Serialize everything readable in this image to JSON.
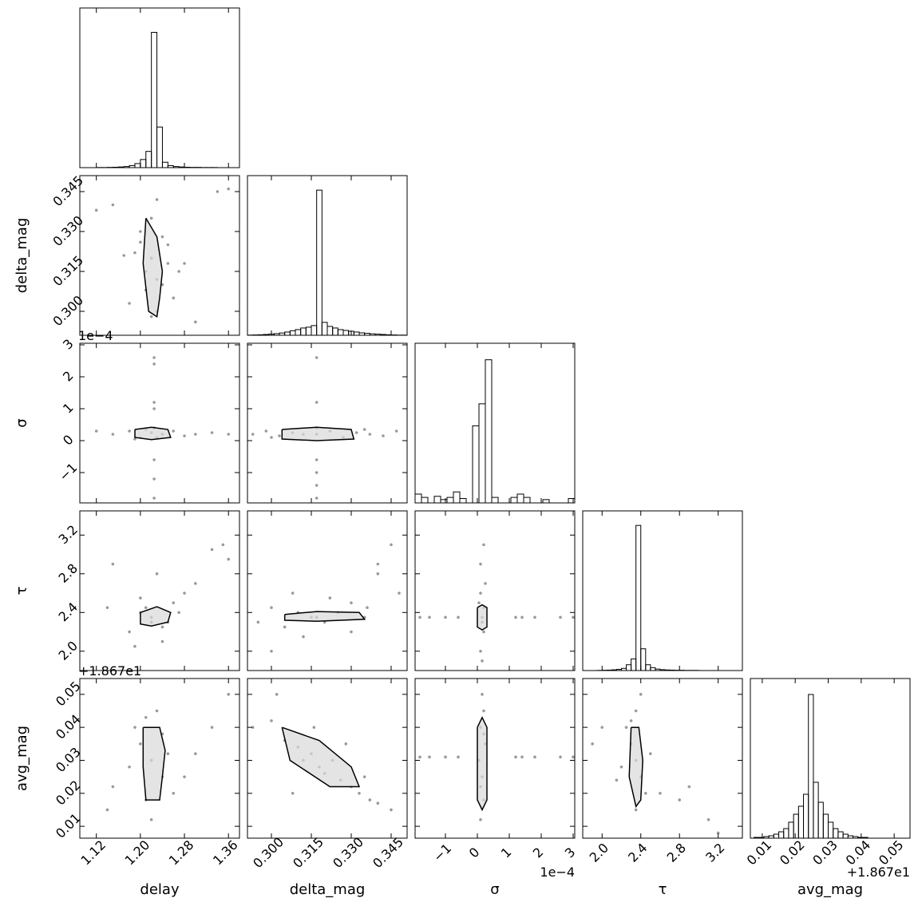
{
  "chart_data": {
    "type": "corner",
    "variables": [
      {
        "label": "delay",
        "lim": [
          1.09,
          1.38
        ],
        "ticks": [
          1.12,
          {
            "value": 1.2,
            "label": "1.20"
          },
          1.28,
          1.36
        ]
      },
      {
        "label": "delta_mag",
        "lim": [
          0.291,
          0.351
        ],
        "ticks": [
          {
            "value": 0.3,
            "label": "0.300"
          },
          0.315,
          {
            "value": 0.33,
            "label": "0.330"
          },
          0.345
        ]
      },
      {
        "label": "σ",
        "lim": [
          -1.95,
          3.05
        ],
        "ticks": [
          {
            "value": -1,
            "label": "−1"
          },
          0,
          1,
          2,
          3
        ],
        "offset": "1e−4"
      },
      {
        "label": "τ",
        "lim": [
          1.8,
          3.45
        ],
        "ticks": [
          {
            "value": 2,
            "label": "2.0"
          },
          2.4,
          2.8,
          3.2
        ]
      },
      {
        "label": "avg_mag",
        "lim": [
          0.0064,
          0.0548
        ],
        "ticks": [
          0.01,
          0.02,
          0.03,
          0.04,
          0.05
        ],
        "offset": "+1.867e1"
      }
    ],
    "histograms": [
      {
        "bins": [
          1.09,
          1.1,
          1.11,
          1.12,
          1.13,
          1.14,
          1.15,
          1.16,
          1.17,
          1.18,
          1.19,
          1.2,
          1.21,
          1.22,
          1.23,
          1.24,
          1.25,
          1.26,
          1.27,
          1.28,
          1.29,
          1.3,
          1.31,
          1.32,
          1.33,
          1.34,
          1.35,
          1.36,
          1.37,
          1.38,
          1.39
        ],
        "counts": [
          0,
          0,
          0,
          1,
          1,
          2,
          3,
          5,
          8,
          15,
          30,
          60,
          120,
          1000,
          300,
          40,
          15,
          8,
          5,
          3,
          2,
          2,
          1,
          1,
          1,
          0,
          0,
          0,
          0,
          0
        ],
        "ylim": [
          0,
          1180
        ]
      },
      {
        "bins": [
          0.291,
          0.293,
          0.295,
          0.297,
          0.299,
          0.301,
          0.303,
          0.305,
          0.307,
          0.309,
          0.311,
          0.313,
          0.315,
          0.317,
          0.319,
          0.321,
          0.323,
          0.325,
          0.327,
          0.329,
          0.331,
          0.333,
          0.335,
          0.337,
          0.339,
          0.341,
          0.343,
          0.345,
          0.347,
          0.349,
          0.351
        ],
        "counts": [
          1,
          2,
          3,
          5,
          7,
          10,
          14,
          20,
          28,
          35,
          45,
          50,
          60,
          900,
          80,
          55,
          45,
          35,
          30,
          25,
          20,
          15,
          12,
          9,
          7,
          5,
          3,
          2,
          1,
          1
        ],
        "ylim": [
          0,
          990
        ]
      },
      {
        "bins": [
          -1.95,
          -1.75,
          -1.55,
          -1.35,
          -1.15,
          -0.95,
          -0.75,
          -0.55,
          -0.35,
          -0.15,
          0.05,
          0.25,
          0.45,
          0.65,
          0.85,
          1.05,
          1.25,
          1.45,
          1.65,
          1.85,
          2.05,
          2.25,
          2.45,
          2.65,
          2.85,
          3.05
        ],
        "counts": [
          8,
          5,
          0,
          6,
          3,
          5,
          10,
          4,
          0,
          70,
          90,
          130,
          5,
          0,
          0,
          5,
          8,
          5,
          0,
          0,
          3,
          0,
          0,
          0,
          4
        ],
        "ylim": [
          0,
          145
        ]
      },
      {
        "bins": [
          1.8,
          1.85,
          1.9,
          1.95,
          2.0,
          2.05,
          2.1,
          2.15,
          2.2,
          2.25,
          2.3,
          2.35,
          2.4,
          2.45,
          2.5,
          2.55,
          2.6,
          2.65,
          2.7,
          2.75,
          2.8,
          2.85,
          2.9,
          2.95,
          3.0,
          3.05,
          3.1,
          3.15,
          3.2,
          3.25,
          3.3,
          3.35,
          3.4,
          3.45
        ],
        "counts": [
          0,
          0,
          0,
          1,
          2,
          3,
          5,
          8,
          15,
          40,
          80,
          1000,
          150,
          40,
          20,
          10,
          6,
          4,
          3,
          2,
          2,
          1,
          1,
          1,
          0,
          0,
          0,
          0,
          0,
          0,
          0,
          0,
          0
        ],
        "ylim": [
          0,
          1100
        ]
      },
      {
        "bins": [
          0.0075,
          0.009,
          0.0105,
          0.012,
          0.0135,
          0.015,
          0.0165,
          0.018,
          0.0195,
          0.021,
          0.0225,
          0.024,
          0.0255,
          0.027,
          0.0285,
          0.03,
          0.0315,
          0.033,
          0.0345,
          0.036,
          0.0375,
          0.039,
          0.0405,
          0.042,
          0.0435,
          0.045,
          0.0465,
          0.048,
          0.0495,
          0.051,
          0.0525,
          0.054
        ],
        "counts": [
          1,
          1,
          2,
          3,
          5,
          8,
          12,
          20,
          30,
          40,
          55,
          180,
          70,
          45,
          30,
          20,
          12,
          8,
          5,
          3,
          2,
          1,
          1,
          0,
          0,
          0,
          0,
          0,
          0,
          0,
          0
        ],
        "ylim": [
          0,
          200
        ]
      }
    ],
    "pairs": [
      {
        "x": [
          1.2,
          1.22,
          1.24,
          1.21,
          1.23,
          1.25,
          1.19,
          1.26,
          1.22,
          1.23,
          1.15,
          1.3,
          1.34,
          1.12,
          1.28,
          1.21,
          1.24,
          1.18,
          1.27,
          1.22,
          1.36,
          1.17,
          1.25,
          1.2,
          1.23
        ],
        "y": [
          0.33,
          0.32,
          0.31,
          0.315,
          0.3,
          0.325,
          0.322,
          0.305,
          0.335,
          0.312,
          0.34,
          0.296,
          0.345,
          0.338,
          0.318,
          0.308,
          0.328,
          0.303,
          0.315,
          0.298,
          0.346,
          0.321,
          0.318,
          0.326,
          0.342
        ],
        "contour_x": [
          1.21,
          1.23,
          1.24,
          1.235,
          1.23,
          1.215,
          1.205,
          1.21
        ],
        "contour_y": [
          0.335,
          0.328,
          0.315,
          0.305,
          0.298,
          0.3,
          0.318,
          0.335
        ]
      },
      {
        "x": [
          1.15,
          1.18,
          1.2,
          1.22,
          1.24,
          1.26,
          1.28,
          1.3,
          1.33,
          1.12,
          1.21,
          1.23,
          1.225,
          1.225,
          1.225,
          1.225,
          1.225,
          1.225,
          1.225,
          1.225,
          1.36,
          1.19
        ],
        "y": [
          0.2,
          0.3,
          0.1,
          0.25,
          0.2,
          0.3,
          0.15,
          0.2,
          0.25,
          0.3,
          0.35,
          0.1,
          2.6,
          2.4,
          1.2,
          1.0,
          0.4,
          -0.6,
          -1.2,
          -1.8,
          0.2,
          0.05
        ],
        "contour_x": [
          1.19,
          1.22,
          1.25,
          1.255,
          1.22,
          1.19,
          1.19
        ],
        "contour_y": [
          0.35,
          0.42,
          0.35,
          0.1,
          0.03,
          0.1,
          0.35
        ]
      },
      {
        "x": [
          0.293,
          0.298,
          0.303,
          0.308,
          0.312,
          0.317,
          0.322,
          0.327,
          0.332,
          0.337,
          0.342,
          0.347,
          0.317,
          0.317,
          0.317,
          0.317,
          0.317,
          0.317,
          0.317,
          0.3,
          0.335
        ],
        "y": [
          0.2,
          0.3,
          0.15,
          0.25,
          0.2,
          0.2,
          0.3,
          0.1,
          0.25,
          0.2,
          0.15,
          0.3,
          2.6,
          1.2,
          0.4,
          -0.6,
          -1.0,
          -1.4,
          -1.8,
          0.1,
          0.35
        ],
        "contour_x": [
          0.304,
          0.317,
          0.33,
          0.331,
          0.317,
          0.304,
          0.304
        ],
        "contour_y": [
          0.35,
          0.42,
          0.35,
          0.05,
          0.0,
          0.05,
          0.35
        ]
      },
      {
        "x": [
          1.22,
          1.2,
          1.25,
          1.18,
          1.26,
          1.23,
          1.21,
          1.3,
          1.33,
          1.35,
          1.15,
          1.24,
          1.27,
          1.19,
          1.22,
          1.28,
          1.14,
          1.36,
          1.24,
          1.2
        ],
        "y": [
          2.35,
          2.4,
          2.3,
          2.2,
          2.5,
          2.8,
          2.45,
          2.7,
          3.05,
          3.1,
          2.9,
          2.1,
          2.4,
          2.05,
          2.3,
          2.6,
          2.45,
          2.95,
          2.25,
          2.55
        ],
        "contour_x": [
          1.2,
          1.23,
          1.255,
          1.25,
          1.22,
          1.2,
          1.2
        ],
        "contour_y": [
          2.4,
          2.46,
          2.4,
          2.3,
          2.26,
          2.28,
          2.4
        ]
      },
      {
        "x": [
          0.295,
          0.3,
          0.305,
          0.31,
          0.315,
          0.32,
          0.325,
          0.33,
          0.335,
          0.34,
          0.345,
          0.348,
          0.312,
          0.322,
          0.3,
          0.33,
          0.317,
          0.336,
          0.308,
          0.34
        ],
        "y": [
          2.3,
          2.45,
          2.25,
          2.4,
          2.35,
          2.3,
          2.4,
          2.5,
          2.35,
          2.8,
          3.1,
          2.6,
          2.15,
          2.55,
          2.0,
          2.2,
          2.35,
          2.45,
          2.6,
          2.9
        ],
        "contour_x": [
          0.305,
          0.317,
          0.333,
          0.335,
          0.317,
          0.305,
          0.305
        ],
        "contour_y": [
          2.38,
          2.41,
          2.4,
          2.33,
          2.31,
          2.32,
          2.38
        ]
      },
      {
        "x": [
          0.1,
          0.2,
          0.15,
          0.05,
          0.25,
          0.1,
          0.2,
          0.15,
          0.1,
          0.2,
          -1.8,
          -1.5,
          -1.0,
          -0.6,
          1.2,
          1.4,
          1.8,
          2.6,
          3.0,
          0.15
        ],
        "y": [
          2.0,
          2.2,
          2.35,
          2.5,
          2.7,
          2.9,
          3.1,
          1.9,
          2.6,
          2.45,
          2.35,
          2.35,
          2.35,
          2.35,
          2.35,
          2.35,
          2.35,
          2.35,
          2.35,
          2.3
        ],
        "contour_x": [
          0.0,
          0.15,
          0.3,
          0.3,
          0.15,
          0.0,
          0.0
        ],
        "contour_y": [
          2.45,
          2.48,
          2.45,
          2.25,
          2.22,
          2.25,
          2.45
        ]
      },
      {
        "x": [
          1.22,
          1.2,
          1.24,
          1.19,
          1.26,
          1.23,
          1.21,
          1.3,
          1.15,
          1.33,
          1.24,
          1.22,
          1.18,
          1.28,
          1.36,
          1.14,
          1.25,
          1.21
        ],
        "y": [
          0.03,
          0.035,
          0.025,
          0.04,
          0.02,
          0.045,
          0.018,
          0.032,
          0.022,
          0.04,
          0.038,
          0.012,
          0.028,
          0.025,
          0.05,
          0.015,
          0.032,
          0.043
        ],
        "contour_x": [
          1.205,
          1.235,
          1.245,
          1.24,
          1.235,
          1.21,
          1.205,
          1.205
        ],
        "contour_y": [
          0.04,
          0.04,
          0.033,
          0.025,
          0.018,
          0.018,
          0.028,
          0.04
        ]
      },
      {
        "x": [
          0.293,
          0.3,
          0.305,
          0.31,
          0.312,
          0.315,
          0.318,
          0.32,
          0.323,
          0.326,
          0.33,
          0.333,
          0.337,
          0.34,
          0.345,
          0.302,
          0.328,
          0.316,
          0.335,
          0.308
        ],
        "y": [
          0.04,
          0.042,
          0.036,
          0.034,
          0.03,
          0.032,
          0.028,
          0.026,
          0.03,
          0.024,
          0.022,
          0.02,
          0.018,
          0.017,
          0.015,
          0.05,
          0.035,
          0.04,
          0.025,
          0.02
        ],
        "contour_x": [
          0.304,
          0.318,
          0.33,
          0.333,
          0.322,
          0.307,
          0.304
        ],
        "contour_y": [
          0.04,
          0.036,
          0.028,
          0.022,
          0.022,
          0.03,
          0.04
        ]
      },
      {
        "x": [
          0.1,
          0.2,
          0.15,
          0.05,
          0.25,
          0.1,
          0.2,
          0.15,
          0.1,
          0.2,
          -1.8,
          -1.5,
          -1.0,
          -0.6,
          1.2,
          1.4,
          1.8,
          2.6,
          3.0
        ],
        "y": [
          0.012,
          0.018,
          0.025,
          0.03,
          0.035,
          0.04,
          0.045,
          0.05,
          0.022,
          0.038,
          0.031,
          0.031,
          0.031,
          0.031,
          0.031,
          0.031,
          0.031,
          0.031,
          0.031
        ],
        "contour_x": [
          0.0,
          0.15,
          0.3,
          0.3,
          0.15,
          0.0,
          0.0
        ],
        "contour_y": [
          0.04,
          0.043,
          0.04,
          0.018,
          0.015,
          0.018,
          0.04
        ]
      },
      {
        "x": [
          2.35,
          2.3,
          2.4,
          2.25,
          2.45,
          2.35,
          2.2,
          2.5,
          2.0,
          2.6,
          2.8,
          3.1,
          3.2,
          1.9,
          2.35,
          2.4,
          2.9,
          2.3,
          2.15
        ],
        "y": [
          0.03,
          0.035,
          0.025,
          0.04,
          0.02,
          0.045,
          0.028,
          0.032,
          0.04,
          0.02,
          0.018,
          0.012,
          0.008,
          0.035,
          0.015,
          0.05,
          0.022,
          0.042,
          0.024
        ],
        "contour_x": [
          2.3,
          2.38,
          2.42,
          2.4,
          2.35,
          2.28,
          2.3
        ],
        "contour_y": [
          0.04,
          0.04,
          0.03,
          0.018,
          0.016,
          0.025,
          0.04
        ]
      }
    ]
  }
}
